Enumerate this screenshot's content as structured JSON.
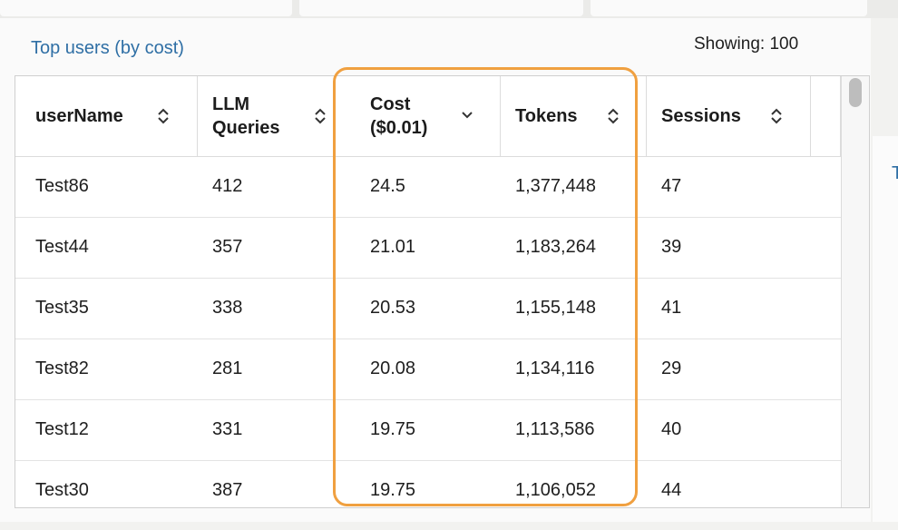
{
  "panel": {
    "title": "Top users (by cost)",
    "showing": "Showing: 100",
    "side_glyph": "T"
  },
  "table": {
    "columns": [
      {
        "label": "userName",
        "sort_icon": "sort-both-icon"
      },
      {
        "label": "LLM\nQueries",
        "sort_icon": "sort-both-icon"
      },
      {
        "label": "Cost\n($0.01)",
        "sort_icon": "sort-descending-icon"
      },
      {
        "label": "Tokens",
        "sort_icon": "sort-both-icon"
      },
      {
        "label": "Sessions",
        "sort_icon": "sort-both-icon"
      }
    ],
    "rows": [
      [
        "Test86",
        "412",
        "24.5",
        "1,377,448",
        "47"
      ],
      [
        "Test44",
        "357",
        "21.01",
        "1,183,264",
        "39"
      ],
      [
        "Test35",
        "338",
        "20.53",
        "1,155,148",
        "41"
      ],
      [
        "Test82",
        "281",
        "20.08",
        "1,134,116",
        "29"
      ],
      [
        "Test12",
        "331",
        "19.75",
        "1,113,586",
        "40"
      ],
      [
        "Test30",
        "387",
        "19.75",
        "1,106,052",
        "44"
      ]
    ]
  },
  "colors": {
    "highlight": "#f0a040",
    "title_link": "#2f6fa5"
  }
}
